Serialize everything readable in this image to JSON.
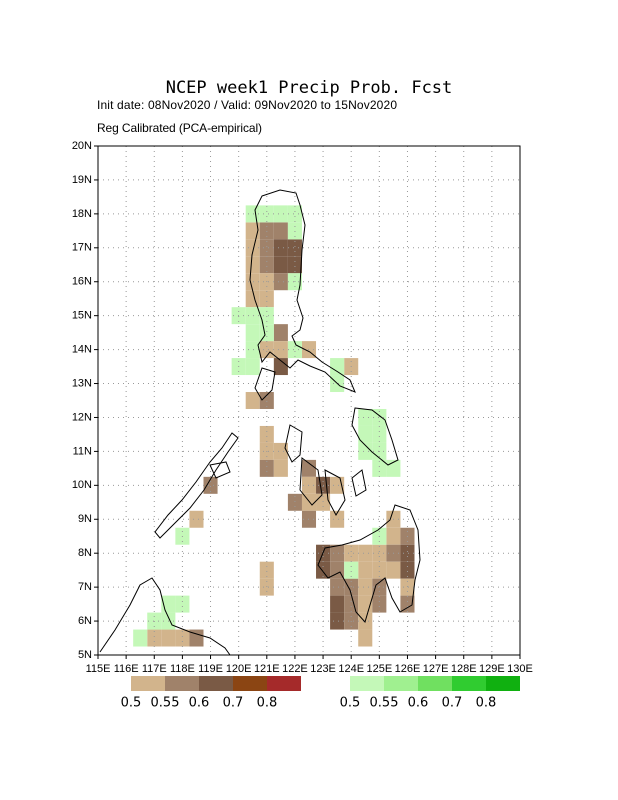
{
  "chart_data": {
    "type": "map",
    "title": "NCEP week1 Precip Prob. Fcst",
    "subtitle": [
      "Init date: 08Nov2020 / Valid: 09Nov2020 to 15Nov2020",
      "Reg Calibrated (PCA-empirical)"
    ],
    "xlim": [
      115,
      130
    ],
    "ylim": [
      5,
      20
    ],
    "xticks": [
      {
        "value": 115,
        "label": "115E"
      },
      {
        "value": 116,
        "label": "116E"
      },
      {
        "value": 117,
        "label": "117E"
      },
      {
        "value": 118,
        "label": "118E"
      },
      {
        "value": 119,
        "label": "119E"
      },
      {
        "value": 120,
        "label": "120E"
      },
      {
        "value": 121,
        "label": "121E"
      },
      {
        "value": 122,
        "label": "122E"
      },
      {
        "value": 123,
        "label": "123E"
      },
      {
        "value": 124,
        "label": "124E"
      },
      {
        "value": 125,
        "label": "125E"
      },
      {
        "value": 126,
        "label": "126E"
      },
      {
        "value": 127,
        "label": "127E"
      },
      {
        "value": 128,
        "label": "128E"
      },
      {
        "value": 129,
        "label": "129E"
      },
      {
        "value": 130,
        "label": "130E"
      }
    ],
    "yticks": [
      {
        "value": 5,
        "label": "5N"
      },
      {
        "value": 6,
        "label": "6N"
      },
      {
        "value": 7,
        "label": "7N"
      },
      {
        "value": 8,
        "label": "8N"
      },
      {
        "value": 9,
        "label": "9N"
      },
      {
        "value": 10,
        "label": "10N"
      },
      {
        "value": 11,
        "label": "11N"
      },
      {
        "value": 12,
        "label": "12N"
      },
      {
        "value": 13,
        "label": "13N"
      },
      {
        "value": 14,
        "label": "14N"
      },
      {
        "value": 15,
        "label": "15N"
      },
      {
        "value": 16,
        "label": "16N"
      },
      {
        "value": 17,
        "label": "17N"
      },
      {
        "value": 18,
        "label": "18N"
      },
      {
        "value": 19,
        "label": "19N"
      },
      {
        "value": 20,
        "label": "20N"
      }
    ],
    "grid": true,
    "cell_size": 0.5,
    "below": {
      "levels": [
        0.5,
        0.55,
        0.6,
        0.7,
        0.8
      ],
      "colors": [
        "#d2b48c",
        "#a0826a",
        "#7a5a45",
        "#8b4513",
        "#a52a2a"
      ],
      "cells": [
        [
          120.5,
          17.5,
          0.5
        ],
        [
          121,
          17.5,
          0.55
        ],
        [
          121.5,
          17.5,
          0.55
        ],
        [
          120.5,
          17,
          0.5
        ],
        [
          121,
          17,
          0.55
        ],
        [
          121.5,
          17,
          0.6
        ],
        [
          122,
          17,
          0.6
        ],
        [
          120.5,
          16.5,
          0.5
        ],
        [
          121,
          16.5,
          0.55
        ],
        [
          121.5,
          16.5,
          0.6
        ],
        [
          122,
          16.5,
          0.6
        ],
        [
          120.5,
          16,
          0.5
        ],
        [
          121,
          16,
          0.5
        ],
        [
          121.5,
          16,
          0.55
        ],
        [
          120.5,
          15.5,
          0.5
        ],
        [
          121,
          15.5,
          0.5
        ],
        [
          121.5,
          14.5,
          0.55
        ],
        [
          121,
          14,
          0.5
        ],
        [
          121.5,
          14,
          0.5
        ],
        [
          122.5,
          14,
          0.5
        ],
        [
          121.5,
          13.5,
          0.6
        ],
        [
          124,
          13.5,
          0.5
        ],
        [
          120.5,
          12.5,
          0.5
        ],
        [
          121,
          12.5,
          0.55
        ],
        [
          121,
          11.5,
          0.5
        ],
        [
          121,
          11,
          0.5
        ],
        [
          121.5,
          11,
          0.5
        ],
        [
          121,
          10.5,
          0.55
        ],
        [
          121.5,
          10.5,
          0.5
        ],
        [
          122.5,
          10.5,
          0.55
        ],
        [
          119,
          10,
          0.55
        ],
        [
          122.5,
          10,
          0.5
        ],
        [
          123,
          10,
          0.6
        ],
        [
          123.5,
          10,
          0.5
        ],
        [
          122,
          9.5,
          0.55
        ],
        [
          122.5,
          9.5,
          0.5
        ],
        [
          123,
          9.5,
          0.5
        ],
        [
          118.5,
          9,
          0.5
        ],
        [
          122.5,
          9,
          0.55
        ],
        [
          123.5,
          9,
          0.5
        ],
        [
          125.5,
          9,
          0.5
        ],
        [
          125.5,
          8.5,
          0.5
        ],
        [
          126,
          8.5,
          0.55
        ],
        [
          123,
          8,
          0.6
        ],
        [
          123.5,
          8,
          0.55
        ],
        [
          124,
          8,
          0.5
        ],
        [
          124.5,
          8,
          0.5
        ],
        [
          125,
          8,
          0.5
        ],
        [
          125.5,
          8,
          0.55
        ],
        [
          126,
          8,
          0.6
        ],
        [
          121,
          7.5,
          0.5
        ],
        [
          123,
          7.5,
          0.6
        ],
        [
          123.5,
          7.5,
          0.55
        ],
        [
          124.5,
          7.5,
          0.5
        ],
        [
          125,
          7.5,
          0.5
        ],
        [
          125.5,
          7.5,
          0.5
        ],
        [
          126,
          7.5,
          0.6
        ],
        [
          121,
          7,
          0.5
        ],
        [
          123.5,
          7,
          0.55
        ],
        [
          124,
          7,
          0.55
        ],
        [
          124.5,
          7,
          0.5
        ],
        [
          125,
          7,
          0.55
        ],
        [
          126,
          7,
          0.5
        ],
        [
          123.5,
          6.5,
          0.6
        ],
        [
          124,
          6.5,
          0.55
        ],
        [
          124.5,
          6.5,
          0.5
        ],
        [
          125,
          6.5,
          0.55
        ],
        [
          126,
          6.5,
          0.55
        ],
        [
          123.5,
          6,
          0.6
        ],
        [
          124,
          6,
          0.55
        ],
        [
          124.5,
          6,
          0.5
        ],
        [
          117,
          5.5,
          0.5
        ],
        [
          117.5,
          5.5,
          0.5
        ],
        [
          118,
          5.5,
          0.5
        ],
        [
          118.5,
          5.5,
          0.55
        ],
        [
          124.5,
          5.5,
          0.5
        ]
      ]
    },
    "above": {
      "levels": [
        0.5,
        0.55,
        0.6,
        0.7,
        0.8
      ],
      "colors": [
        "#c4f8b8",
        "#a0f090",
        "#70e060",
        "#30cc30",
        "#10b010"
      ],
      "cells": [
        [
          120.5,
          18,
          0.5
        ],
        [
          121,
          18,
          0.5
        ],
        [
          121.5,
          18,
          0.5
        ],
        [
          122,
          18,
          0.5
        ],
        [
          122,
          17.5,
          0.5
        ],
        [
          122,
          16,
          0.5
        ],
        [
          120,
          15,
          0.5
        ],
        [
          120.5,
          15,
          0.5
        ],
        [
          121,
          15,
          0.5
        ],
        [
          120.5,
          14.5,
          0.5
        ],
        [
          121,
          14.5,
          0.5
        ],
        [
          120.5,
          14,
          0.5
        ],
        [
          122,
          14,
          0.5
        ],
        [
          120,
          13.5,
          0.5
        ],
        [
          120.5,
          13.5,
          0.5
        ],
        [
          123.5,
          13.5,
          0.5
        ],
        [
          123.5,
          13,
          0.5
        ],
        [
          124.5,
          12,
          0.5
        ],
        [
          125,
          12,
          0.5
        ],
        [
          124.5,
          11.5,
          0.5
        ],
        [
          125,
          11.5,
          0.5
        ],
        [
          124.5,
          11,
          0.5
        ],
        [
          125,
          11,
          0.5
        ],
        [
          125,
          10.5,
          0.5
        ],
        [
          125.5,
          10.5,
          0.5
        ],
        [
          118,
          8.5,
          0.5
        ],
        [
          125,
          8.5,
          0.5
        ],
        [
          124,
          7.5,
          0.5
        ],
        [
          117.5,
          6.5,
          0.5
        ],
        [
          118,
          6.5,
          0.5
        ],
        [
          117,
          6,
          0.5
        ],
        [
          117.5,
          6,
          0.5
        ],
        [
          116.5,
          5.5,
          0.5
        ]
      ]
    }
  }
}
